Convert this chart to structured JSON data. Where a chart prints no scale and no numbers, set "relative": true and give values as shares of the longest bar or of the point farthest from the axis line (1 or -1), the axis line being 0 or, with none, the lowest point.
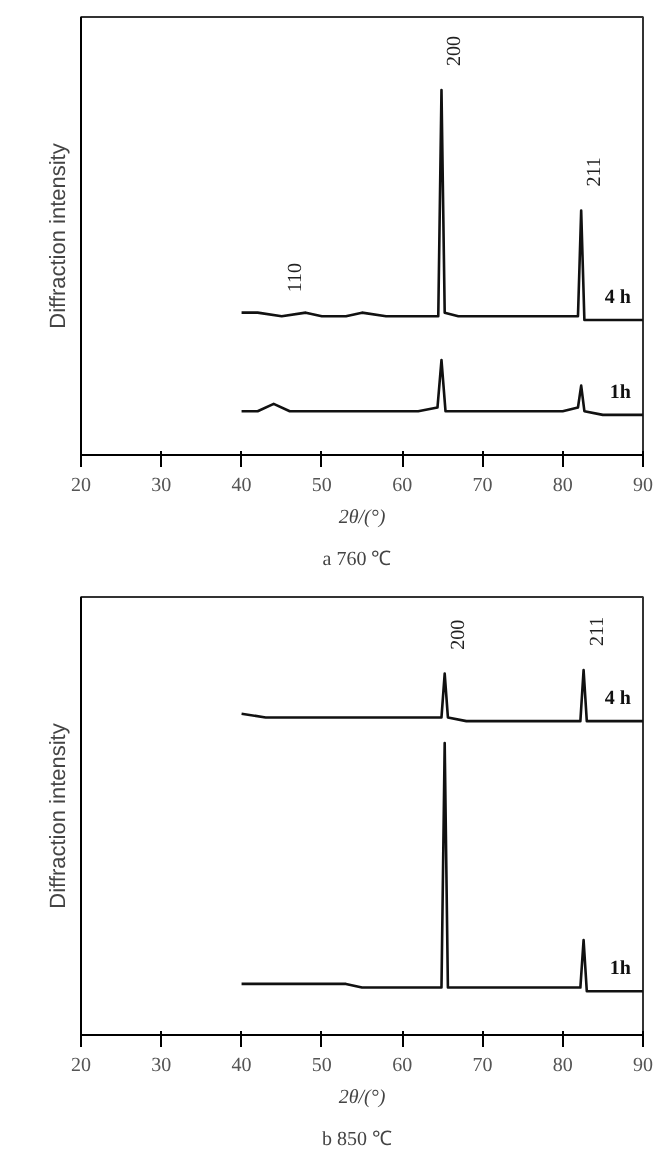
{
  "chart_data": [
    {
      "type": "line",
      "relative": true,
      "xlabel": "2θ/(°)",
      "ylabel": "Diffraction intensity",
      "xlim": [
        20,
        90
      ],
      "xticks": [
        20,
        30,
        40,
        50,
        60,
        70,
        80,
        90
      ],
      "tick_labels": "x",
      "grid": false,
      "series": [
        {
          "name": "4 h",
          "color": "#111111",
          "x": [
            40,
            42,
            45,
            48,
            50,
            53,
            55,
            58,
            60,
            62,
            64.5,
            64.9,
            65.3,
            67,
            70,
            73,
            75,
            78,
            80,
            81.9,
            82.3,
            82.7,
            85,
            88,
            90
          ],
          "values": [
            0.39,
            0.39,
            0.38,
            0.39,
            0.38,
            0.38,
            0.39,
            0.38,
            0.38,
            0.38,
            0.38,
            1.0,
            0.39,
            0.38,
            0.38,
            0.38,
            0.38,
            0.38,
            0.38,
            0.38,
            0.67,
            0.37,
            0.37,
            0.37,
            0.37
          ]
        },
        {
          "name": "1h",
          "color": "#111111",
          "x": [
            40,
            42,
            44,
            46,
            48,
            50,
            53,
            55,
            58,
            60,
            62,
            64.4,
            64.9,
            65.4,
            67,
            70,
            73,
            75,
            78,
            80,
            81.9,
            82.3,
            82.7,
            85,
            88,
            90
          ],
          "values": [
            0.12,
            0.12,
            0.14,
            0.12,
            0.12,
            0.12,
            0.12,
            0.12,
            0.12,
            0.12,
            0.12,
            0.13,
            0.26,
            0.12,
            0.12,
            0.12,
            0.12,
            0.12,
            0.12,
            0.12,
            0.13,
            0.19,
            0.12,
            0.11,
            0.11,
            0.11
          ]
        }
      ],
      "annotations": [
        {
          "text": "110",
          "x": 45,
          "y": 0.38
        },
        {
          "text": "200",
          "x": 64.9,
          "y": 1.0
        },
        {
          "text": "211",
          "x": 82.3,
          "y": 0.67
        },
        "a   760 ℃"
      ]
    },
    {
      "type": "line",
      "relative": true,
      "xlabel": "2θ/(°)",
      "ylabel": "Diffraction intensity",
      "xlim": [
        20,
        90
      ],
      "xticks": [
        20,
        30,
        40,
        50,
        60,
        70,
        80,
        90
      ],
      "tick_labels": "x",
      "grid": false,
      "series": [
        {
          "name": "4 h",
          "color": "#111111",
          "x": [
            40,
            43,
            45,
            48,
            50,
            53,
            55,
            58,
            60,
            62,
            64.9,
            65.3,
            65.7,
            68,
            70,
            73,
            75,
            78,
            80,
            82.2,
            82.6,
            83.0,
            85,
            88,
            90
          ],
          "values": [
            0.88,
            0.87,
            0.87,
            0.87,
            0.87,
            0.87,
            0.87,
            0.87,
            0.87,
            0.87,
            0.87,
            0.99,
            0.87,
            0.86,
            0.86,
            0.86,
            0.86,
            0.86,
            0.86,
            0.86,
            1.0,
            0.86,
            0.86,
            0.86,
            0.86
          ]
        },
        {
          "name": "1h",
          "color": "#111111",
          "x": [
            40,
            43,
            45,
            48,
            50,
            53,
            55,
            58,
            60,
            62,
            64.9,
            65.3,
            65.7,
            68,
            70,
            73,
            75,
            78,
            80,
            82.2,
            82.6,
            83.0,
            85,
            88,
            90
          ],
          "values": [
            0.14,
            0.14,
            0.14,
            0.14,
            0.14,
            0.14,
            0.13,
            0.13,
            0.13,
            0.13,
            0.13,
            0.8,
            0.13,
            0.13,
            0.13,
            0.13,
            0.13,
            0.13,
            0.13,
            0.13,
            0.26,
            0.12,
            0.12,
            0.12,
            0.12
          ]
        }
      ],
      "annotations": [
        {
          "text": "200",
          "x": 65.3,
          "y": 0.99
        },
        {
          "text": "211",
          "x": 82.6,
          "y": 1.0
        },
        "b   850 ℃"
      ]
    }
  ]
}
